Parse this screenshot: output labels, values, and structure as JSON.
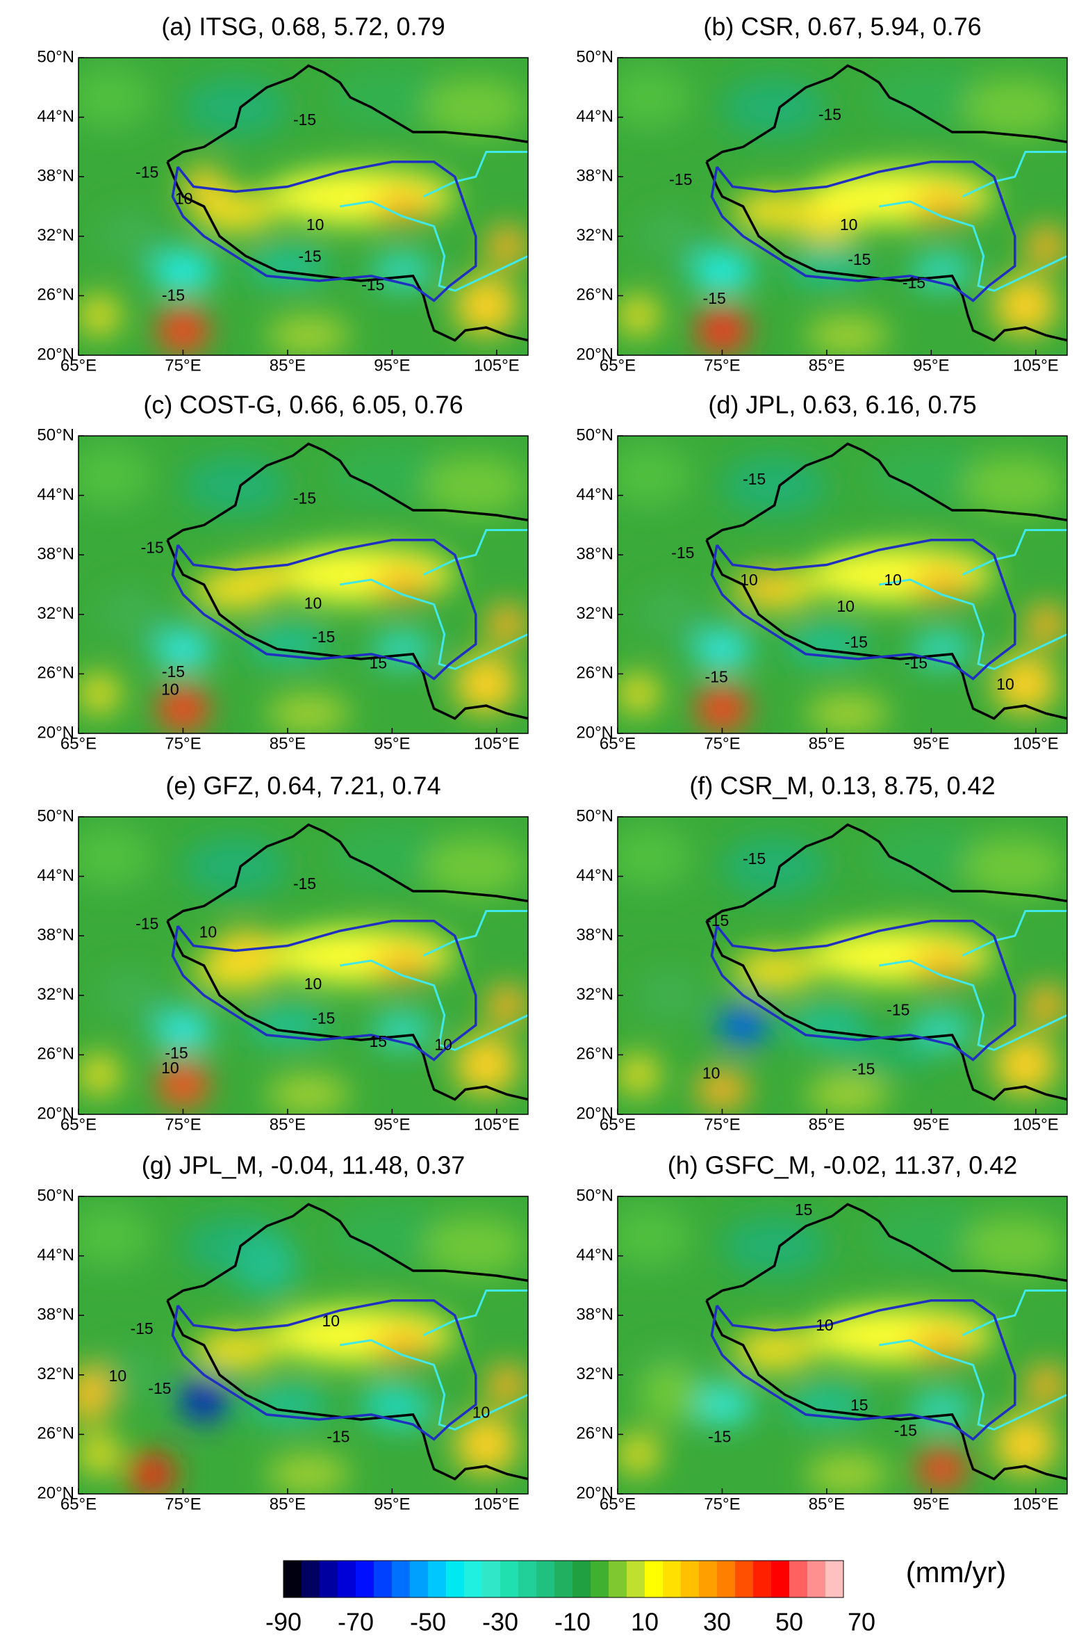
{
  "figure": {
    "panels": [
      {
        "title": "(a) ITSG, 0.68, 5.72,  0.79",
        "contour_labels": [
          "-15",
          "-15",
          "10",
          "10",
          "-15",
          "-15",
          "-15"
        ]
      },
      {
        "title": "(b) CSR, 0.67, 5.94, 0.76",
        "contour_labels": [
          "-15",
          "-15",
          "10",
          "-15",
          "-15",
          "-15"
        ]
      },
      {
        "title": "(c) COST-G, 0.66, 6.05, 0.76",
        "contour_labels": [
          "-15",
          "-15",
          "10",
          "-15",
          "15",
          "-15",
          "10"
        ]
      },
      {
        "title": "(d) JPL, 0.63, 6.16, 0.75",
        "contour_labels": [
          "-15",
          "-15",
          "10",
          "10",
          "10",
          "-15",
          "-15",
          "-15",
          "10"
        ]
      },
      {
        "title": "(e) GFZ, 0.64, 7.21, 0.74",
        "contour_labels": [
          "-15",
          "-15",
          "10",
          "10",
          "-15",
          "-15",
          "15",
          "10",
          "10"
        ]
      },
      {
        "title": "(f) CSR_M, 0.13, 8.75, 0.42",
        "contour_labels": [
          "-15",
          "-15",
          "-15",
          "-15",
          "10"
        ]
      },
      {
        "title": "(g) JPL_M, -0.04, 11.48, 0.37",
        "contour_labels": [
          "-15",
          "10",
          "10",
          "-15",
          "-15",
          "10"
        ]
      },
      {
        "title": "(h) GSFC_M, -0.02, 11.37, 0.42",
        "contour_labels": [
          "15",
          "10",
          "15",
          "-15",
          "-15"
        ]
      }
    ],
    "x_axis": {
      "lim": [
        65,
        108
      ],
      "ticks": [
        {
          "value": 65,
          "label": "65°E"
        },
        {
          "value": 75,
          "label": "75°E"
        },
        {
          "value": 85,
          "label": "85°E"
        },
        {
          "value": 95,
          "label": "95°E"
        },
        {
          "value": 105,
          "label": "105°E"
        }
      ]
    },
    "y_axis": {
      "lim": [
        20,
        50
      ],
      "ticks": [
        {
          "value": 20,
          "label": "20°N"
        },
        {
          "value": 26,
          "label": "26°N"
        },
        {
          "value": 32,
          "label": "32°N"
        },
        {
          "value": 38,
          "label": "38°N"
        },
        {
          "value": 44,
          "label": "44°N"
        },
        {
          "value": 50,
          "label": "50°N"
        }
      ]
    },
    "colorbar": {
      "label": "(mm/yr)",
      "bins": [
        -90,
        -85,
        -80,
        -75,
        -70,
        -65,
        -60,
        -55,
        -50,
        -45,
        -40,
        -35,
        -30,
        -25,
        -20,
        -15,
        -10,
        -5,
        0,
        5,
        10,
        15,
        20,
        25,
        30,
        35,
        40,
        45,
        50,
        55,
        60,
        65
      ],
      "colors": [
        "#000010",
        "#000060",
        "#0000a0",
        "#0000d8",
        "#0010ff",
        "#0040ff",
        "#0070ff",
        "#00a0ff",
        "#00c8ff",
        "#00e8f0",
        "#20f0e0",
        "#30e8c8",
        "#20e0b0",
        "#20d098",
        "#20c080",
        "#20b060",
        "#20a040",
        "#40b030",
        "#80c830",
        "#c0e030",
        "#ffff00",
        "#ffe000",
        "#ffc000",
        "#ffa000",
        "#ff8000",
        "#ff5000",
        "#ff2000",
        "#ff0000",
        "#ff6060",
        "#ff9090",
        "#ffc0c0"
      ],
      "ticks": [
        -90,
        -70,
        -50,
        -30,
        -10,
        10,
        30,
        50,
        70
      ]
    }
  }
}
